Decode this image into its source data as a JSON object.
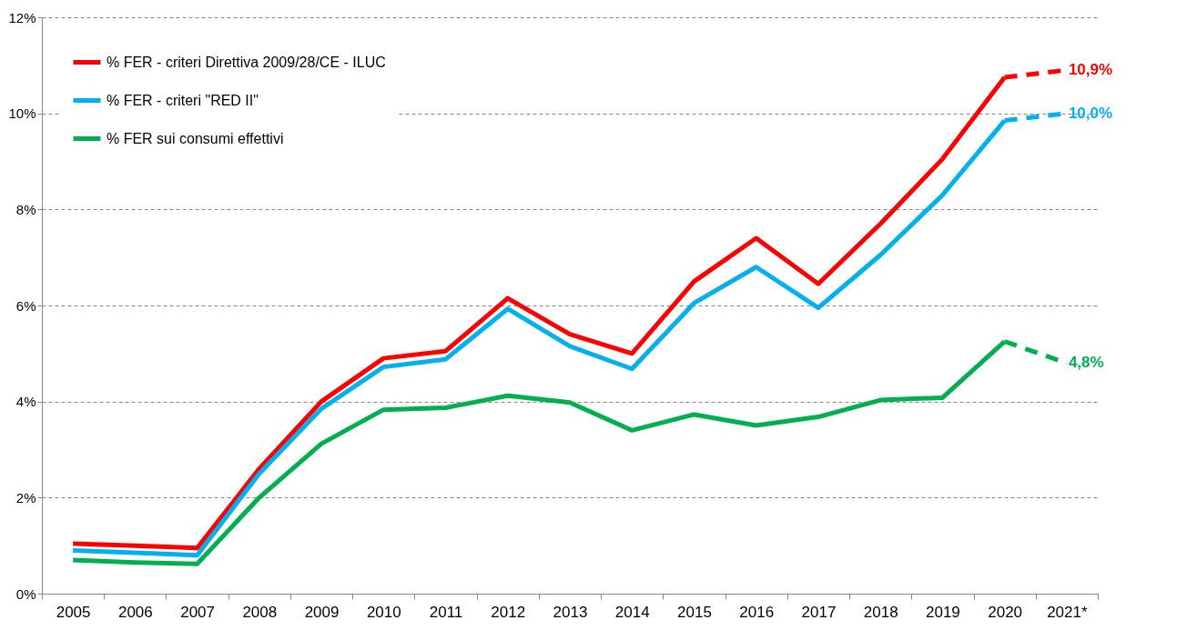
{
  "chart_data": {
    "type": "line",
    "categories": [
      "2005",
      "2006",
      "2007",
      "2008",
      "2009",
      "2010",
      "2011",
      "2012",
      "2013",
      "2014",
      "2015",
      "2016",
      "2017",
      "2018",
      "2019",
      "2020",
      "2021*"
    ],
    "ylim": [
      0,
      12
    ],
    "yticks": [
      {
        "value": 0,
        "label": "0%"
      },
      {
        "value": 2,
        "label": "2%"
      },
      {
        "value": 4,
        "label": "4%"
      },
      {
        "value": 6,
        "label": "6%"
      },
      {
        "value": 8,
        "label": "8%"
      },
      {
        "value": 10,
        "label": "10%"
      },
      {
        "value": 12,
        "label": "12%"
      }
    ],
    "grid": "y",
    "legend": "top left",
    "line_style": "solid",
    "series": [
      {
        "name": "% FER - criteri Direttiva 2009/28/CE - ILUC",
        "color": "#ff0000",
        "values": [
          1.04,
          1.0,
          0.95,
          2.6,
          4.0,
          4.9,
          5.05,
          6.15,
          5.4,
          5.0,
          6.5,
          7.4,
          6.45,
          7.7,
          9.05,
          10.75,
          null
        ]
      },
      {
        "name": "% FER - criteri \"RED II\"",
        "color": "#00b0f0",
        "values": [
          0.9,
          0.85,
          0.8,
          2.5,
          3.85,
          4.72,
          4.88,
          5.93,
          5.15,
          4.68,
          6.05,
          6.8,
          5.95,
          7.05,
          8.3,
          9.85,
          null
        ]
      },
      {
        "name": "% FER sui consumi effettivi",
        "color": "#00b050",
        "values": [
          0.7,
          0.65,
          0.62,
          2.0,
          3.12,
          3.83,
          3.87,
          4.12,
          3.98,
          3.4,
          3.73,
          3.5,
          3.68,
          4.03,
          4.08,
          5.25,
          null
        ]
      },
      {
        "color": "#ff0000",
        "line_style": "dashed",
        "values": [
          null,
          null,
          null,
          null,
          null,
          null,
          null,
          null,
          null,
          null,
          null,
          null,
          null,
          null,
          null,
          10.75,
          10.9
        ],
        "value_labels": [
          null,
          null,
          null,
          null,
          null,
          null,
          null,
          null,
          null,
          null,
          null,
          null,
          null,
          null,
          null,
          null,
          "10,9%"
        ]
      },
      {
        "color": "#00b0f0",
        "line_style": "dashed",
        "values": [
          null,
          null,
          null,
          null,
          null,
          null,
          null,
          null,
          null,
          null,
          null,
          null,
          null,
          null,
          null,
          9.85,
          10.0
        ],
        "value_labels": [
          null,
          null,
          null,
          null,
          null,
          null,
          null,
          null,
          null,
          null,
          null,
          null,
          null,
          null,
          null,
          null,
          "10,0%"
        ]
      },
      {
        "color": "#00b050",
        "line_style": "dashed",
        "values": [
          null,
          null,
          null,
          null,
          null,
          null,
          null,
          null,
          null,
          null,
          null,
          null,
          null,
          null,
          null,
          5.25,
          4.8
        ],
        "value_labels": [
          null,
          null,
          null,
          null,
          null,
          null,
          null,
          null,
          null,
          null,
          null,
          null,
          null,
          null,
          null,
          null,
          "4,8%"
        ]
      }
    ]
  }
}
